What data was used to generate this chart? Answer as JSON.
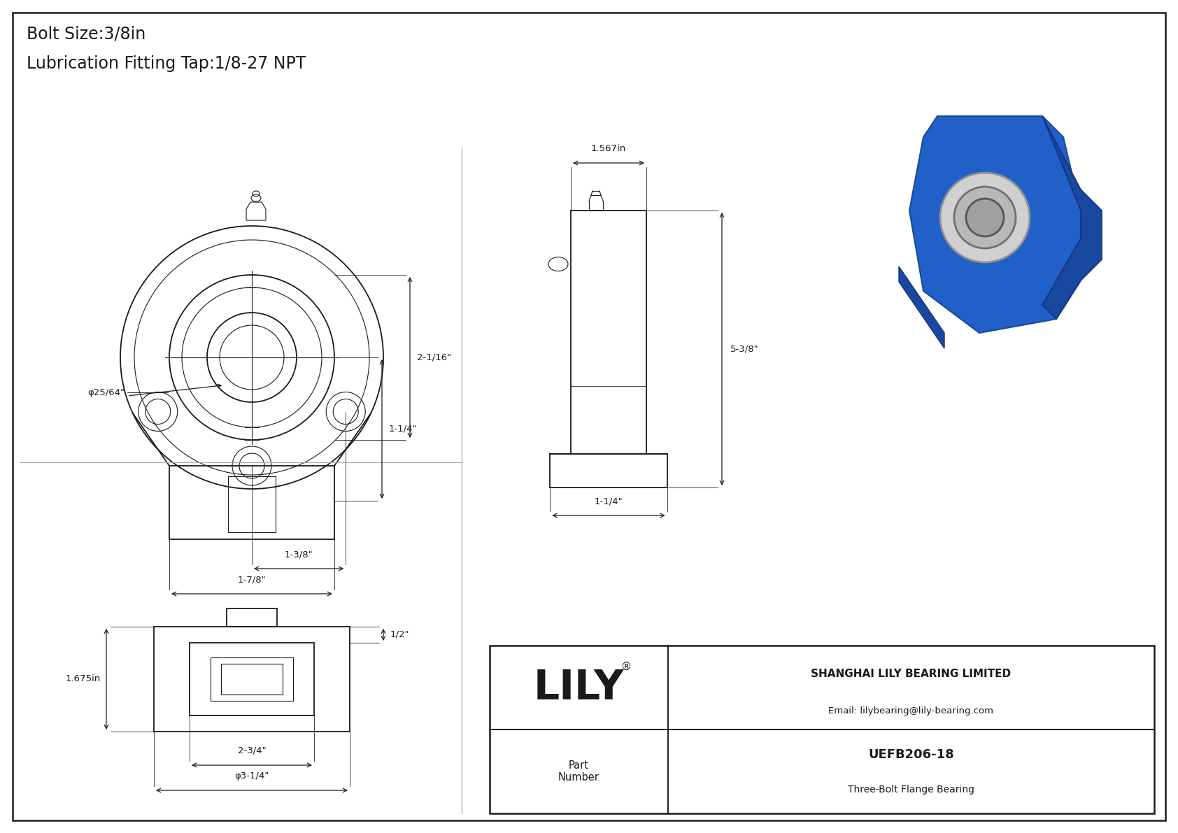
{
  "background_color": "#ffffff",
  "line_color": "#1a1a1a",
  "title_line1": "Bolt Size:3/8in",
  "title_line2": "Lubrication Fitting Tap:1/8-27 NPT",
  "title_fontsize": 17,
  "company_name": "SHANGHAI LILY BEARING LIMITED",
  "company_email": "Email: lilybearing@lily-bearing.com",
  "part_label": "Part\nNumber",
  "part_number": "UEFB206-18",
  "part_desc": "Three-Bolt Flange Bearing",
  "lily_logo": "LILY",
  "ann_phi": "φ25/64\"",
  "ann_2_1_16": "2-1/16\"",
  "ann_1_1_4": "1-1/4\"",
  "ann_1_3_8": "1-3/8\"",
  "ann_1_7_8": "1-7/8\"",
  "ann_1_567": "1.567in",
  "ann_5_3_8": "5-3/8\"",
  "ann_1_1_4_side": "1-1/4\"",
  "ann_1_675": "1.675in",
  "ann_1_2": "1/2\"",
  "ann_2_3_4": "2-3/4\"",
  "ann_phi_3_1_4": "φ3-1/4\""
}
